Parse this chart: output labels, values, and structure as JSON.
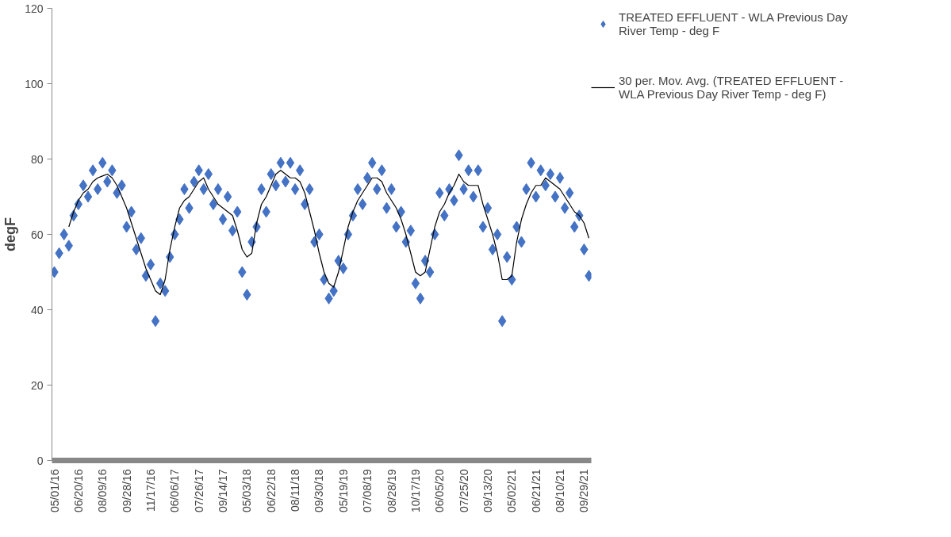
{
  "chart_data": {
    "type": "scatter",
    "ylabel": "degF",
    "ylim": [
      0,
      120
    ],
    "yticks": [
      0,
      20,
      40,
      60,
      80,
      100,
      120
    ],
    "grid": false,
    "legend": "right",
    "categories": [
      "05/01/16",
      null,
      null,
      null,
      null,
      "06/20/16",
      null,
      null,
      null,
      null,
      "08/09/16",
      null,
      null,
      null,
      null,
      "09/28/16",
      null,
      null,
      null,
      null,
      "11/17/16",
      null,
      null,
      null,
      null,
      "06/06/17",
      null,
      null,
      null,
      null,
      "07/26/17",
      null,
      null,
      null,
      null,
      "09/14/17",
      null,
      null,
      null,
      null,
      "05/03/18",
      null,
      null,
      null,
      null,
      "06/22/18",
      null,
      null,
      null,
      null,
      "08/11/18",
      null,
      null,
      null,
      null,
      "09/30/18",
      null,
      null,
      null,
      null,
      "05/19/19",
      null,
      null,
      null,
      null,
      "07/08/19",
      null,
      null,
      null,
      null,
      "08/28/19",
      null,
      null,
      null,
      null,
      "10/17/19",
      null,
      null,
      null,
      null,
      "06/05/20",
      null,
      null,
      null,
      null,
      "07/25/20",
      null,
      null,
      null,
      null,
      "09/13/20",
      null,
      null,
      null,
      null,
      "05/02/21",
      null,
      null,
      null,
      null,
      "06/21/21",
      null,
      null,
      null,
      null,
      "08/10/21",
      null,
      null,
      null,
      null,
      "09/29/21",
      null
    ],
    "series": [
      {
        "name": "TREATED EFFLUENT - WLA Previous Day River Temp - deg F",
        "marker": "diamond",
        "color": "#4472c4",
        "values": [
          50,
          55,
          60,
          57,
          65,
          68,
          73,
          70,
          77,
          72,
          79,
          74,
          77,
          71,
          73,
          62,
          66,
          56,
          59,
          49,
          52,
          37,
          47,
          45,
          54,
          60,
          64,
          72,
          67,
          74,
          77,
          72,
          76,
          68,
          72,
          64,
          70,
          61,
          66,
          50,
          44,
          58,
          62,
          72,
          66,
          76,
          73,
          79,
          74,
          79,
          72,
          77,
          68,
          72,
          58,
          60,
          48,
          43,
          45,
          53,
          51,
          60,
          65,
          72,
          68,
          75,
          79,
          72,
          77,
          67,
          72,
          62,
          66,
          58,
          61,
          47,
          43,
          53,
          50,
          60,
          71,
          65,
          72,
          69,
          81,
          72,
          77,
          70,
          77,
          62,
          67,
          56,
          60,
          37,
          54,
          48,
          62,
          58,
          72,
          79,
          70,
          77,
          73,
          76,
          70,
          75,
          67,
          71,
          62,
          65,
          56,
          49
        ]
      },
      {
        "name": "30 per. Mov. Avg. (TREATED EFFLUENT - WLA Previous Day River Temp - deg F)",
        "type": "line",
        "line_style": "solid",
        "color": "#000000",
        "values": [
          null,
          null,
          null,
          62,
          66,
          69,
          71,
          72,
          74,
          75,
          75.5,
          76,
          75,
          73,
          70,
          67,
          63,
          59,
          55,
          51,
          48,
          45,
          44,
          48,
          56,
          62,
          67,
          69,
          70,
          72,
          74,
          75,
          72,
          70,
          68,
          67,
          66,
          65,
          61,
          56,
          54,
          55,
          63,
          68,
          70,
          73,
          76,
          77,
          76,
          75,
          75,
          74,
          71,
          66,
          61,
          55,
          50,
          47,
          46,
          50,
          56,
          62,
          66,
          69,
          71,
          73,
          75,
          75,
          74,
          71,
          69,
          67,
          64,
          60,
          55,
          50,
          49,
          50,
          56,
          62,
          66,
          68,
          71,
          73,
          76,
          74,
          73,
          73,
          73,
          68,
          64,
          60,
          55,
          48,
          48,
          49,
          58,
          64,
          68,
          71,
          73,
          73,
          75,
          74,
          73,
          72,
          70,
          68,
          66,
          65,
          63,
          59
        ]
      }
    ]
  }
}
